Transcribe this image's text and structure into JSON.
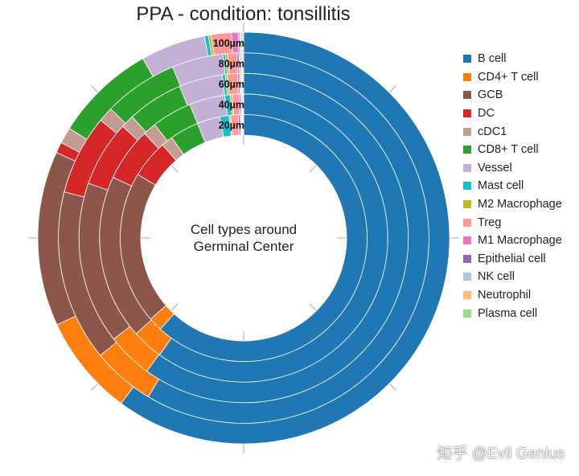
{
  "watermark": "知乎 @Evil Genius",
  "chart_data": {
    "type": "pie",
    "subtype": "concentric-donut",
    "title": "PPA - condition: tonsillitis",
    "center_label": [
      "Cell types around",
      "Germinal Center"
    ],
    "ring_labels": [
      "20µm",
      "40µm",
      "60µm",
      "80µm",
      "100µm"
    ],
    "categories": [
      "B cell",
      "CD4+ T cell",
      "GCB",
      "DC",
      "cDC1",
      "CD8+ T cell",
      "Vessel",
      "Mast cell",
      "M2 Macrophage",
      "Treg",
      "M1 Macrophage",
      "Epithelial cell",
      "NK cell",
      "Neutrophil",
      "Plasma cell"
    ],
    "colors": [
      "#1f77b4",
      "#ff7f0e",
      "#8c564b",
      "#d62728",
      "#c49c94",
      "#2ca02c",
      "#c5b0d5",
      "#17becf",
      "#bcbd22",
      "#ff9896",
      "#e377c2",
      "#9467bd",
      "#aec7e8",
      "#ffbb78",
      "#98df8a"
    ],
    "series": [
      {
        "name": "20µm",
        "values": [
          61.8,
          1.8,
          20.0,
          5.0,
          1.5,
          3.8,
          3.0,
          1.2,
          0.2,
          1.0,
          0.3,
          0.1,
          0.1,
          0.1,
          0.1
        ]
      },
      {
        "name": "40µm",
        "values": [
          60.0,
          3.5,
          18.5,
          6.0,
          1.5,
          4.5,
          4.0,
          0.6,
          0.2,
          0.8,
          0.2,
          0.1,
          0.1,
          0.05,
          0.05
        ]
      },
      {
        "name": "60µm",
        "values": [
          60.3,
          4.5,
          16.0,
          6.5,
          1.3,
          5.5,
          4.3,
          0.3,
          0.2,
          1.0,
          0.2,
          0.1,
          0.1,
          0.1,
          0.1
        ]
      },
      {
        "name": "80µm",
        "values": [
          58.9,
          5.5,
          15.0,
          7.0,
          1.3,
          6.5,
          4.5,
          0.2,
          0.2,
          0.8,
          0.2,
          0.1,
          0.1,
          0.1,
          0.1
        ]
      },
      {
        "name": "100µm",
        "values": [
          56.9,
          7.5,
          13.0,
          0.8,
          1.2,
          7.5,
          4.8,
          0.3,
          0.2,
          1.5,
          0.5,
          0.1,
          0.1,
          0.1,
          0.1
        ]
      }
    ]
  }
}
